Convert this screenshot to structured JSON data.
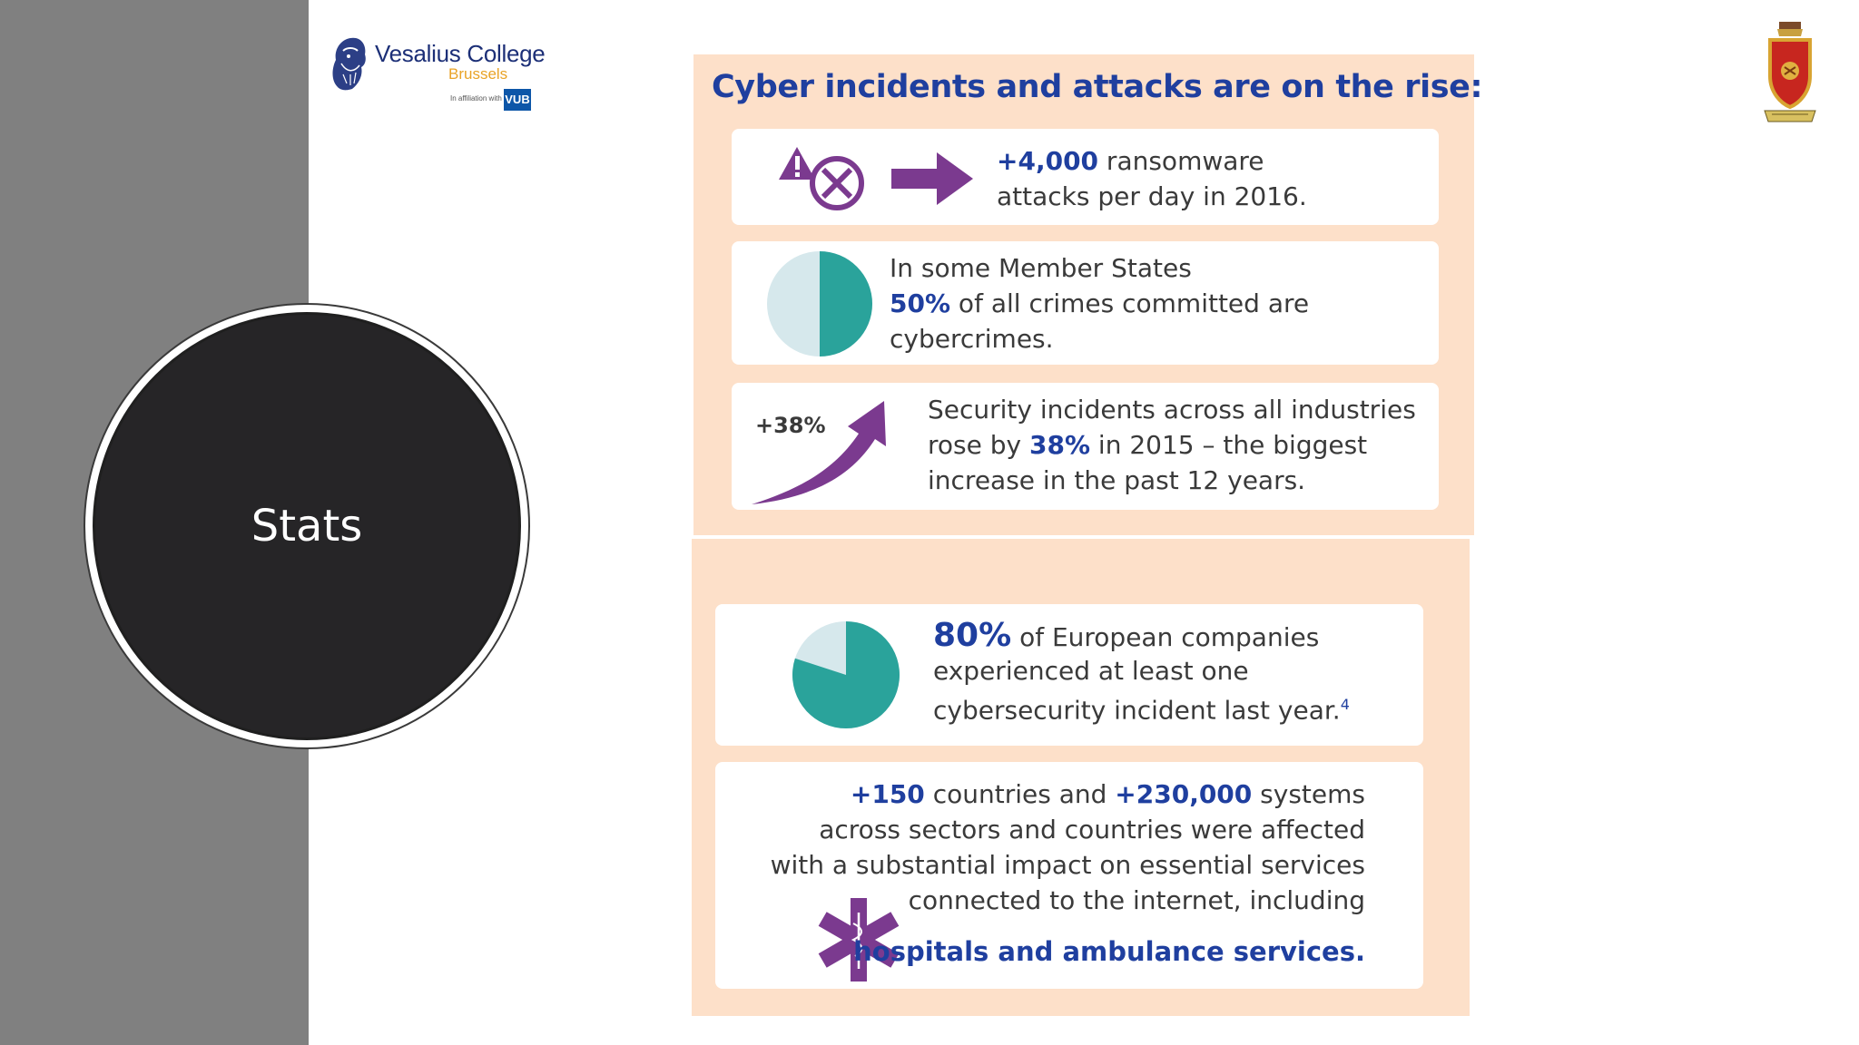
{
  "section": {
    "title": "Stats"
  },
  "logo": {
    "name": "Vesalius College",
    "city": "Brussels",
    "affiliation": "In affiliation with",
    "partner": "VUB"
  },
  "infographic": {
    "title": "Cyber incidents and attacks are on the rise:",
    "ransomware": {
      "stat": "+4,000",
      "line1_rest": " ransomware",
      "line2": "attacks per day in 2016."
    },
    "crimes": {
      "line1": "In some Member States",
      "stat": "50%",
      "line2_rest": " of all crimes committed are",
      "line3": "cybercrimes.",
      "pie_fraction": 0.5
    },
    "security": {
      "arrow_label": "+38%",
      "line1": "Security incidents across all industries",
      "line2_pre": "rose by ",
      "stat": "38%",
      "line2_post": " in 2015 – the biggest",
      "line3": "increase in the past 12 years."
    },
    "companies": {
      "stat": "80%",
      "line1_rest": " of European companies",
      "line2": "experienced at least one",
      "line3": "cybersecurity incident last year.",
      "footnote": "4",
      "pie_fraction": 0.8
    },
    "wannacry": {
      "stat1": "+150",
      "mid": " countries and ",
      "stat2": "+230,000",
      "line1_rest": " systems",
      "line2": "across sectors and countries were affected",
      "line3": "with a substantial impact on essential services",
      "line4": "connected to the internet, including",
      "line5": "hospitals and ambulance services."
    }
  },
  "colors": {
    "accent_blue": "#1f3f9f",
    "purple": "#7b3a8f",
    "teal": "#2aa39b",
    "panel": "#fde0c9",
    "band": "#808080"
  },
  "icons": [
    "bearded-head-logo-icon",
    "college-crest-icon",
    "warning-triangle-icon",
    "circle-x-icon",
    "right-arrow-icon",
    "pie-chart-icon",
    "trending-up-arrow-icon",
    "star-of-life-icon"
  ]
}
